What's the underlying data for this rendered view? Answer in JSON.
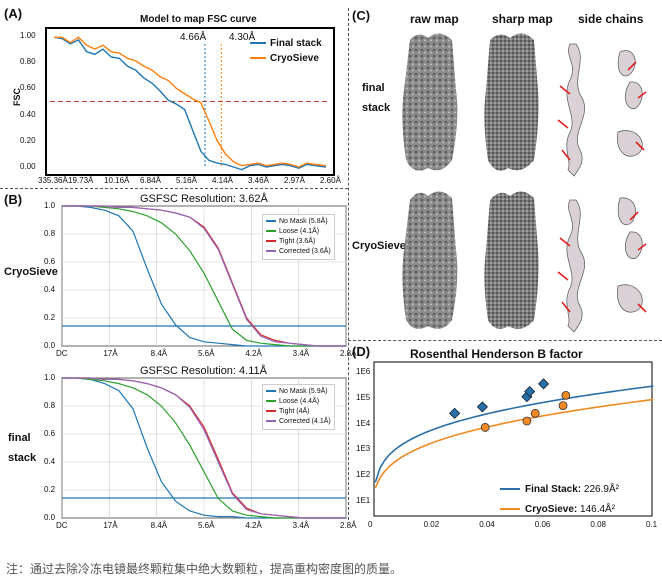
{
  "panelA": {
    "label": "(A)",
    "title": "Model to map FSC curve",
    "ylabel": "FSC",
    "res_label_1": "4.66Å",
    "res_label_2": "4.30Å",
    "legend": [
      {
        "name": "Final stack",
        "color": "#1f77b4"
      },
      {
        "name": "CryoSieve",
        "color": "#ff7f0e"
      }
    ],
    "xticks": [
      "335.36Å",
      "19.73Å",
      "10.16Å",
      "6.84Å",
      "5.16Å",
      "4.14Å",
      "3.46Å",
      "2.97Å",
      "2.60Å"
    ],
    "yticks": [
      "0.00",
      "0.20",
      "0.40",
      "0.60",
      "0.80",
      "1.00"
    ]
  },
  "panelB": {
    "label": "(B)",
    "top": {
      "title": "GSFSC Resolution: 3.62Å",
      "side_label": "CryoSieve",
      "legend": [
        "No Mask (5.8Å)",
        "Loose (4.1Å)",
        "Tight (3.6Å)",
        "Corrected (3.6Å)"
      ]
    },
    "bottom": {
      "title": "GSFSC Resolution: 4.11Å",
      "side_label_1": "final",
      "side_label_2": "stack",
      "legend": [
        "No Mask (5.9Å)",
        "Loose (4.4Å)",
        "Tight (4Å)",
        "Corrected (4.1Å)"
      ]
    },
    "xticks": [
      "DC",
      "17Å",
      "8.4Å",
      "5.6Å",
      "4.2Å",
      "3.4Å",
      "2.8Å"
    ],
    "yticks": [
      "0.0",
      "0.2",
      "0.4",
      "0.6",
      "0.8",
      "1.0"
    ],
    "legend_colors": [
      "#1f77b4",
      "#2ca02c",
      "#d62728",
      "#9467bd"
    ]
  },
  "panelC": {
    "label": "(C)",
    "col_headers": [
      "raw map",
      "sharp map",
      "side chains"
    ],
    "row1_label_1": "final",
    "row1_label_2": "stack",
    "row2_label": "CryoSieve"
  },
  "panelD": {
    "label": "(D)",
    "title": "Rosenthal Henderson B factor",
    "yticks": [
      "1E6",
      "1E5",
      "1E4",
      "1E3",
      "1E2",
      "1E1"
    ],
    "xticks": [
      "0",
      "0.02",
      "0.04",
      "0.06",
      "0.08",
      "0.1"
    ],
    "legend_1_name": "Final Stack:",
    "legend_1_value": "226.9Å²",
    "legend_2_name": "CryoSieve:",
    "legend_2_value": "146.4Å²"
  },
  "chart_data": [
    {
      "type": "line",
      "title": "Model to map FSC curve",
      "ylabel": "FSC",
      "ylim": [
        0,
        1
      ],
      "x_positions": [
        0,
        0.03,
        0.06,
        0.09,
        0.12,
        0.15,
        0.18,
        0.21,
        0.24,
        0.27,
        0.3,
        0.33,
        0.36,
        0.39,
        0.42,
        0.45,
        0.48,
        0.51,
        0.54,
        0.57,
        0.6,
        0.63,
        0.66,
        0.69,
        0.72,
        0.75,
        0.78,
        0.81,
        0.84,
        0.87,
        0.9,
        0.93,
        0.96,
        1.0
      ],
      "series": [
        {
          "name": "Final stack",
          "color": "#1f77b4",
          "values": [
            0.99,
            0.98,
            0.94,
            0.97,
            0.88,
            0.86,
            0.9,
            0.84,
            0.83,
            0.77,
            0.74,
            0.68,
            0.64,
            0.58,
            0.51,
            0.48,
            0.44,
            0.28,
            0.12,
            0.05,
            0.03,
            0.02,
            0.0,
            -0.02,
            0.01,
            0.02,
            0.0,
            0.01,
            0.02,
            0.01,
            -0.01,
            0.02,
            0.01,
            0.0
          ]
        },
        {
          "name": "CryoSieve",
          "color": "#ff7f0e",
          "values": [
            0.99,
            0.99,
            0.95,
            0.99,
            0.93,
            0.9,
            0.93,
            0.88,
            0.87,
            0.83,
            0.81,
            0.77,
            0.74,
            0.69,
            0.66,
            0.6,
            0.56,
            0.52,
            0.49,
            0.35,
            0.2,
            0.1,
            0.04,
            0.01,
            0.02,
            0.03,
            0.01,
            0.02,
            0.03,
            0.02,
            0.0,
            0.03,
            0.02,
            0.01
          ]
        }
      ],
      "threshold": 0.5
    },
    {
      "type": "line",
      "title": "GSFSC Resolution: 3.62Å",
      "ylim": [
        0,
        1
      ],
      "x_positions": [
        0,
        0.05,
        0.1,
        0.15,
        0.2,
        0.25,
        0.3,
        0.35,
        0.4,
        0.45,
        0.5,
        0.55,
        0.6,
        0.65,
        0.7,
        0.75,
        0.8,
        0.85,
        0.9,
        0.95,
        1.0
      ],
      "series": [
        {
          "name": "No Mask (5.8Å)",
          "values": [
            1.0,
            1.0,
            0.99,
            0.97,
            0.93,
            0.82,
            0.55,
            0.3,
            0.15,
            0.06,
            0.03,
            0.02,
            0.01,
            0.0,
            0.0,
            0.0,
            0.0,
            0.0,
            0.0,
            0.0,
            0.0
          ]
        },
        {
          "name": "Loose (4.1Å)",
          "values": [
            1.0,
            1.0,
            1.0,
            0.99,
            0.98,
            0.96,
            0.93,
            0.88,
            0.8,
            0.68,
            0.52,
            0.32,
            0.12,
            0.04,
            0.02,
            0.01,
            0.0,
            0.0,
            0.0,
            0.0,
            0.0
          ]
        },
        {
          "name": "Tight (3.6Å)",
          "values": [
            1.0,
            1.0,
            1.0,
            1.0,
            0.99,
            0.99,
            0.98,
            0.97,
            0.95,
            0.92,
            0.85,
            0.7,
            0.45,
            0.2,
            0.08,
            0.04,
            0.02,
            0.01,
            0.0,
            0.0,
            0.0
          ]
        },
        {
          "name": "Corrected (3.6Å)",
          "values": [
            1.0,
            1.0,
            1.0,
            1.0,
            0.99,
            0.99,
            0.98,
            0.97,
            0.95,
            0.92,
            0.84,
            0.69,
            0.44,
            0.19,
            0.07,
            0.03,
            0.02,
            0.01,
            0.0,
            0.0,
            0.0
          ]
        }
      ],
      "threshold": 0.143
    },
    {
      "type": "line",
      "title": "GSFSC Resolution: 4.11Å",
      "ylim": [
        0,
        1
      ],
      "x_positions": [
        0,
        0.05,
        0.1,
        0.15,
        0.2,
        0.25,
        0.3,
        0.35,
        0.4,
        0.45,
        0.5,
        0.55,
        0.6,
        0.65,
        0.7,
        0.75,
        0.8,
        0.85,
        0.9,
        0.95,
        1.0
      ],
      "series": [
        {
          "name": "No Mask (5.9Å)",
          "values": [
            1.0,
            1.0,
            0.99,
            0.96,
            0.91,
            0.78,
            0.5,
            0.26,
            0.12,
            0.05,
            0.02,
            0.01,
            0.01,
            0.0,
            0.0,
            0.0,
            0.0,
            0.0,
            0.0,
            0.0,
            0.0
          ]
        },
        {
          "name": "Loose (4.4Å)",
          "values": [
            1.0,
            1.0,
            0.99,
            0.98,
            0.96,
            0.93,
            0.88,
            0.8,
            0.68,
            0.52,
            0.33,
            0.14,
            0.05,
            0.02,
            0.01,
            0.0,
            0.0,
            0.0,
            0.0,
            0.0,
            0.0
          ]
        },
        {
          "name": "Tight (4Å)",
          "values": [
            1.0,
            1.0,
            1.0,
            0.99,
            0.99,
            0.98,
            0.96,
            0.93,
            0.88,
            0.8,
            0.65,
            0.42,
            0.18,
            0.07,
            0.03,
            0.02,
            0.01,
            0.0,
            0.0,
            0.0,
            0.0
          ]
        },
        {
          "name": "Corrected (4.1Å)",
          "values": [
            1.0,
            1.0,
            1.0,
            0.99,
            0.99,
            0.98,
            0.96,
            0.93,
            0.88,
            0.79,
            0.63,
            0.4,
            0.17,
            0.06,
            0.03,
            0.02,
            0.01,
            0.0,
            0.0,
            0.0,
            0.0
          ]
        }
      ],
      "threshold": 0.143
    },
    {
      "type": "scatter",
      "title": "Rosenthal Henderson B factor",
      "xlim": [
        0,
        0.1
      ],
      "ylim_log10": [
        0.4,
        6.4
      ],
      "series": [
        {
          "name": "Final Stack",
          "color": "#2a6fa8",
          "marker": "diamond",
          "x": [
            0.029,
            0.039,
            0.055,
            0.056,
            0.061
          ],
          "y_log10": [
            4.4,
            4.65,
            5.05,
            5.25,
            5.55
          ]
        },
        {
          "name": "CryoSieve",
          "color": "#f08a24",
          "marker": "circle",
          "x": [
            0.04,
            0.055,
            0.058,
            0.068,
            0.069
          ],
          "y_log10": [
            3.85,
            4.1,
            4.4,
            4.7,
            5.1
          ]
        }
      ]
    }
  ],
  "caption": "注：通过去除冷冻电镜最终颗粒集中绝大数颗粒，提高重构密度图的质量。"
}
